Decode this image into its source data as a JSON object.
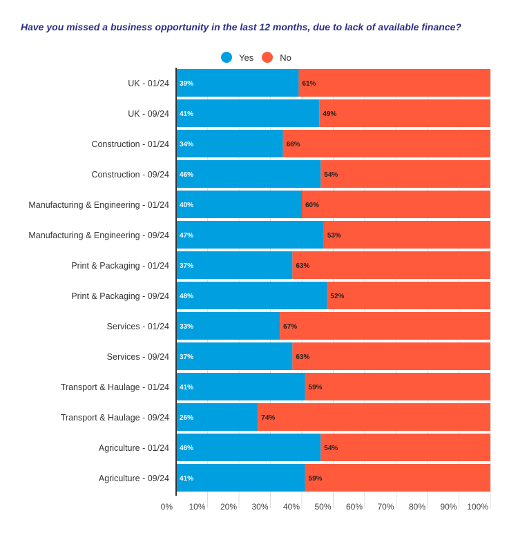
{
  "chart_data": {
    "type": "bar",
    "orientation": "horizontal",
    "stacked": true,
    "normalized": true,
    "title": "Have you missed a business opportunity in the last 12 months, due to lack of available finance?",
    "legend_position": "top",
    "categories": [
      "UK - 01/24",
      "UK - 09/24",
      "Construction - 01/24",
      "Construction - 09/24",
      "Manufacturing & Engineering - 01/24",
      "Manufacturing & Engineering - 09/24",
      "Print & Packaging - 01/24",
      "Print & Packaging - 09/24",
      "Services - 01/24",
      "Services - 09/24",
      "Transport & Haulage - 01/24",
      "Transport & Haulage - 09/24",
      "Agriculture - 01/24",
      "Agriculture - 09/24"
    ],
    "series": [
      {
        "name": "Yes",
        "color": "#009fe0",
        "values": [
          39,
          41,
          34,
          46,
          40,
          47,
          37,
          48,
          33,
          37,
          41,
          26,
          46,
          41
        ]
      },
      {
        "name": "No",
        "color": "#ff5a3c",
        "values": [
          61,
          49,
          66,
          54,
          60,
          53,
          63,
          52,
          67,
          63,
          59,
          74,
          54,
          59
        ]
      }
    ],
    "xlim": [
      0,
      100
    ],
    "x_ticks": [
      "0%",
      "10%",
      "20%",
      "30%",
      "40%",
      "50%",
      "60%",
      "70%",
      "80%",
      "90%",
      "100%"
    ],
    "grid": true
  }
}
